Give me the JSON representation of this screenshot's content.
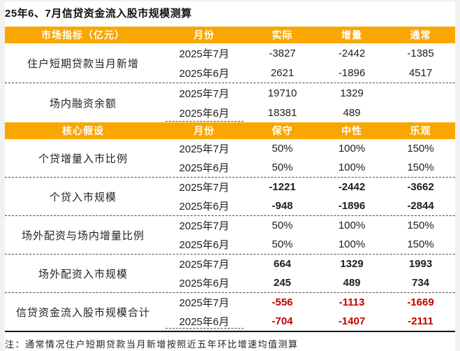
{
  "page": {
    "title": "25年6、7月信贷资金流入股市规模测算",
    "note": "注：通常情况住户短期贷款当月新增按照近五年环比增速均值测算"
  },
  "colors": {
    "header_bg": "#F9A700",
    "header_text": "#FFFFFF",
    "negative_red": "#C00000",
    "body_text": "#1A1A1A"
  },
  "table": {
    "sections": [
      {
        "headers": [
          "市场指标（亿元）",
          "月份",
          "实际",
          "增量",
          "通常"
        ],
        "groups": [
          {
            "label": "住户短期贷款当月新增",
            "style": "normal",
            "rows": [
              {
                "month": "2025年7月",
                "values": [
                  "-3827",
                  "-2442",
                  "-1385"
                ]
              },
              {
                "month": "2025年6月",
                "values": [
                  "2621",
                  "-1896",
                  "4517"
                ]
              }
            ]
          },
          {
            "label": "场内融资余额",
            "style": "normal",
            "rows": [
              {
                "month": "2025年7月",
                "values": [
                  "19710",
                  "1329",
                  ""
                ]
              },
              {
                "month": "2025年6月",
                "values": [
                  "18381",
                  "489",
                  ""
                ]
              }
            ]
          }
        ]
      },
      {
        "headers": [
          "核心假设",
          "月份",
          "保守",
          "中性",
          "乐观"
        ],
        "groups": [
          {
            "label": "个贷增量入市比例",
            "style": "normal",
            "rows": [
              {
                "month": "2025年7月",
                "values": [
                  "50%",
                  "100%",
                  "150%"
                ]
              },
              {
                "month": "2025年6月",
                "values": [
                  "50%",
                  "100%",
                  "150%"
                ]
              }
            ]
          },
          {
            "label": "个贷入市规模",
            "style": "bold",
            "rows": [
              {
                "month": "2025年7月",
                "values": [
                  "-1221",
                  "-2442",
                  "-3662"
                ]
              },
              {
                "month": "2025年6月",
                "values": [
                  "-948",
                  "-1896",
                  "-2844"
                ]
              }
            ]
          },
          {
            "label": "场外配资与场内增量比例",
            "style": "normal",
            "rows": [
              {
                "month": "2025年7月",
                "values": [
                  "50%",
                  "100%",
                  "150%"
                ]
              },
              {
                "month": "2025年6月",
                "values": [
                  "50%",
                  "100%",
                  "150%"
                ]
              }
            ]
          },
          {
            "label": "场外配资入市规模",
            "style": "bold",
            "rows": [
              {
                "month": "2025年7月",
                "values": [
                  "664",
                  "1329",
                  "1993"
                ]
              },
              {
                "month": "2025年6月",
                "values": [
                  "245",
                  "489",
                  "734"
                ]
              }
            ]
          },
          {
            "label": "信贷资金流入股市规模合计",
            "style": "bold-red",
            "rows": [
              {
                "month": "2025年7月",
                "values": [
                  "-556",
                  "-1113",
                  "-1669"
                ]
              },
              {
                "month": "2025年6月",
                "values": [
                  "-704",
                  "-1407",
                  "-2111"
                ]
              }
            ]
          }
        ]
      }
    ]
  }
}
